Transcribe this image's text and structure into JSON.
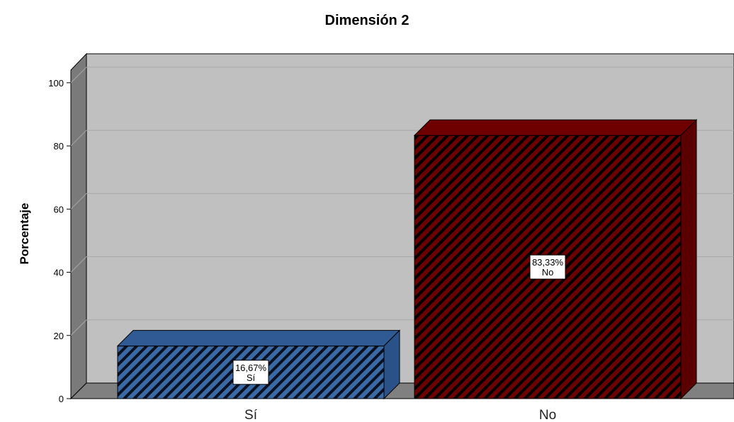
{
  "chart_data": {
    "type": "bar",
    "title": "Dimensión 2",
    "xlabel": "",
    "ylabel": "Porcentaje",
    "categories": [
      "Sí",
      "No"
    ],
    "values": [
      16.67,
      83.33
    ],
    "data_labels": [
      {
        "value": "16,67%",
        "category": "Sí"
      },
      {
        "value": "83,33%",
        "category": "No"
      }
    ],
    "ylim": [
      0,
      104
    ],
    "yticks": [
      "0",
      "20",
      "40",
      "60",
      "80",
      "100"
    ],
    "grid": true,
    "style": "3d",
    "colors": {
      "bars": [
        "#3a6aa5",
        "#6a0000"
      ],
      "bar_tops": [
        "#2f5a94",
        "#6e0000"
      ],
      "bar_sides": [
        "#2a5288",
        "#5a0000"
      ],
      "bar_hatch": [
        "#0a1020",
        "#000000"
      ],
      "wall": "#c0c0c0",
      "side_wall": "#7a7a7a",
      "floor": "#808080",
      "grid": "#a8a8a8"
    }
  }
}
